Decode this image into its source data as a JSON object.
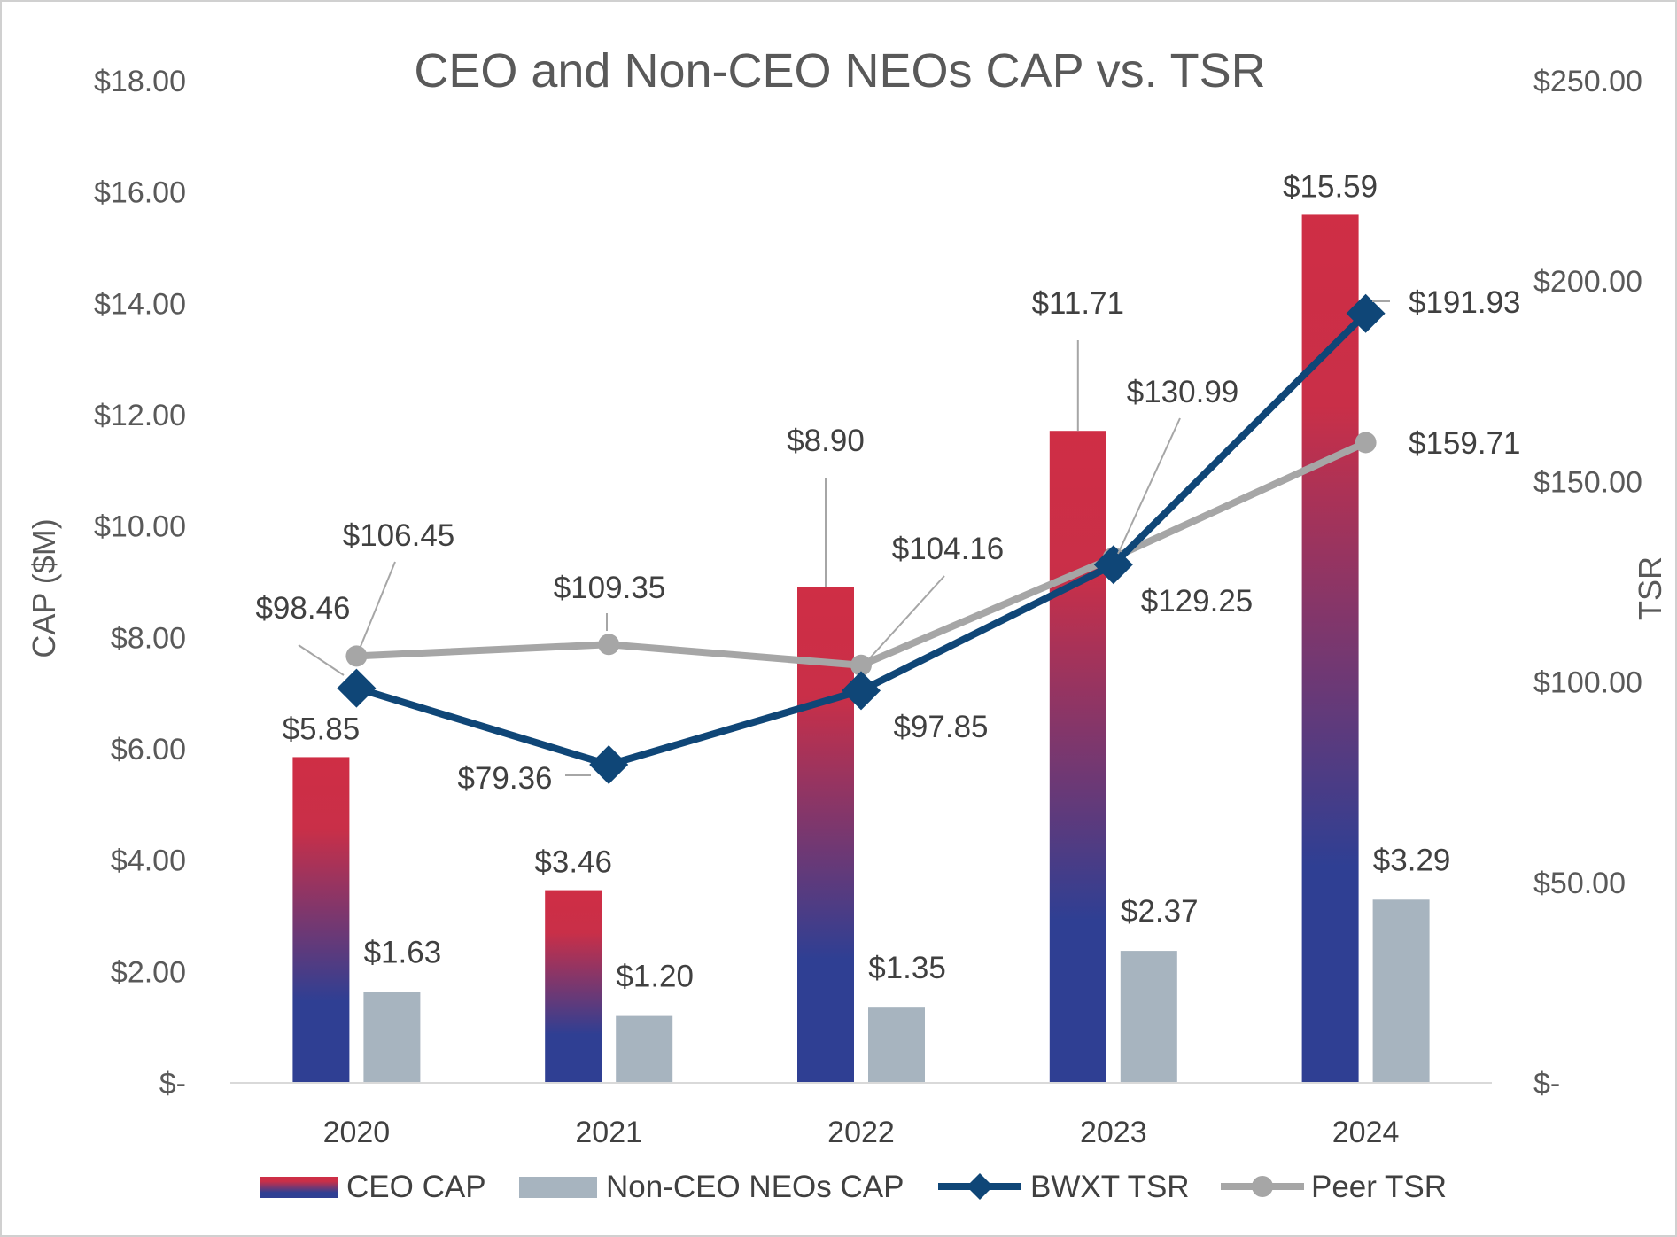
{
  "chart_data": {
    "type": "bar",
    "title": "CEO and Non-CEO NEOs CAP vs. TSR",
    "ylabel": "CAP ($M)",
    "y2label": "TSR",
    "categories": [
      "2020",
      "2021",
      "2022",
      "2023",
      "2024"
    ],
    "ylim": [
      0,
      18
    ],
    "y2lim": [
      0,
      250
    ],
    "yticks": [
      "$-",
      "$2.00",
      "$4.00",
      "$6.00",
      "$8.00",
      "$10.00",
      "$12.00",
      "$14.00",
      "$16.00",
      "$18.00"
    ],
    "y2ticks": [
      "$-",
      "$50.00",
      "$100.00",
      "$150.00",
      "$200.00",
      "$250.00"
    ],
    "grid": false,
    "legend_position": "bottom",
    "series": [
      {
        "name": "CEO CAP",
        "kind": "bar",
        "axis": "left",
        "values": [
          5.85,
          3.46,
          8.9,
          11.71,
          15.59
        ],
        "labels": [
          "$5.85",
          "$3.46",
          "$8.90",
          "$11.71",
          "$15.59"
        ],
        "color_top": "#cf2e45",
        "color_bottom": "#2f3f93"
      },
      {
        "name": "Non-CEO NEOs CAP",
        "kind": "bar",
        "axis": "left",
        "values": [
          1.63,
          1.2,
          1.35,
          2.37,
          3.29
        ],
        "labels": [
          "$1.63",
          "$1.20",
          "$1.35",
          "$2.37",
          "$3.29"
        ],
        "color": "#a7b4bf"
      },
      {
        "name": "BWXT TSR",
        "kind": "line",
        "axis": "right",
        "marker": "diamond",
        "values": [
          98.46,
          79.36,
          97.85,
          129.25,
          191.93
        ],
        "labels": [
          "$98.46",
          "$79.36",
          "$97.85",
          "$129.25",
          "$191.93"
        ],
        "color": "#0f4677"
      },
      {
        "name": "Peer TSR",
        "kind": "line",
        "axis": "right",
        "marker": "circle",
        "values": [
          106.45,
          109.35,
          104.16,
          130.99,
          159.71
        ],
        "labels": [
          "$106.45",
          "$109.35",
          "$104.16",
          "$130.99",
          "$159.71"
        ],
        "color": "#a6a6a6"
      }
    ]
  }
}
